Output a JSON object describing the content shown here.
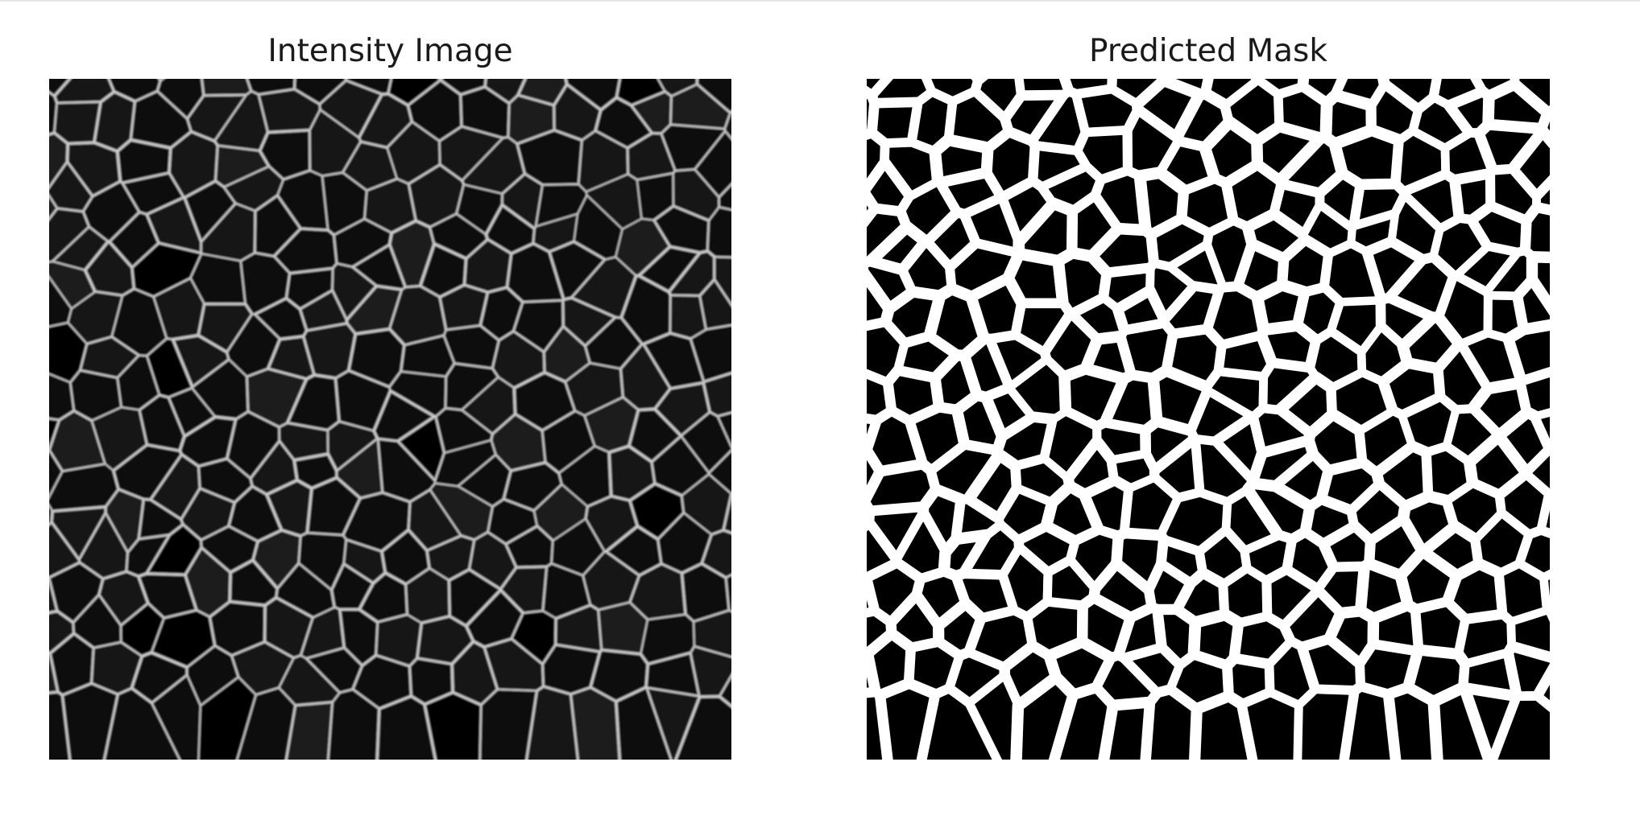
{
  "figure": {
    "panels": [
      {
        "title": "Intensity Image",
        "colormap": "gray",
        "content": "cell-membrane-microscopy"
      },
      {
        "title": "Predicted Mask",
        "colormap": "binary",
        "content": "segmentation-mask"
      }
    ],
    "colors": {
      "background": "#ffffff",
      "image_background": "#000000",
      "membrane_intensity": "#cfcfcf",
      "mask_foreground": "#ffffff"
    }
  }
}
